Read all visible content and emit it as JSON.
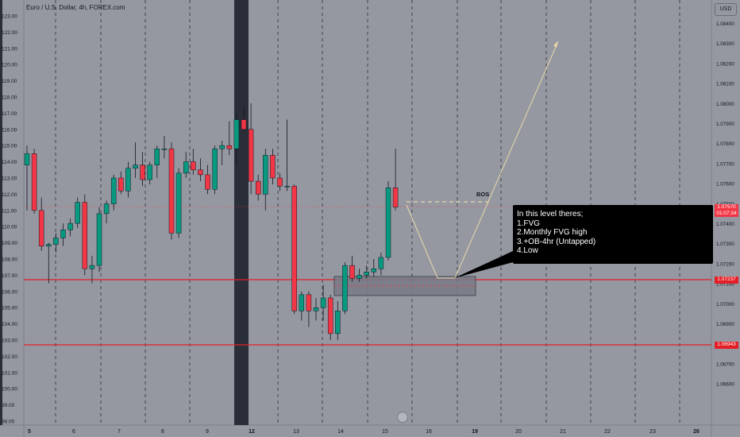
{
  "header": {
    "title": "Euro / U.S. Dollar, 4h, FOREX.com"
  },
  "currency_button": {
    "label": "USD"
  },
  "left_scale": {
    "labels": [
      "123.00",
      "122.00",
      "121.00",
      "120.00",
      "119.00",
      "118.00",
      "117.00",
      "116.00",
      "115.00",
      "114.00",
      "113.00",
      "112.00",
      "111.00",
      "110.00",
      "109.00",
      "108.00",
      "107.00",
      "106.00",
      "105.00",
      "104.00",
      "103.00",
      "102.00",
      "101.00",
      "100.00",
      "99.00",
      "98.00"
    ]
  },
  "right_scale": {
    "labels": [
      "1.08400",
      "1.08300",
      "1.08200",
      "1.08100",
      "1.08000",
      "1.07900",
      "1.07800",
      "1.07700",
      "1.07600",
      "1.07500",
      "1.07400",
      "1.07300",
      "1.07200",
      "1.07100",
      "1.07000",
      "1.06900",
      "1.06800",
      "1.06700",
      "1.06600"
    ]
  },
  "price_tags": {
    "current_price": "1.07570",
    "countdown": "01:07:34",
    "level_upper": "1.07237",
    "level_lower": "1.06943"
  },
  "time_axis": {
    "labels": [
      "5",
      "6",
      "7",
      "8",
      "9",
      "12",
      "13",
      "14",
      "15",
      "16",
      "19",
      "20",
      "21",
      "22",
      "23",
      "26"
    ]
  },
  "annotation": {
    "lines": [
      "In this level theres;",
      "1.FVG",
      "2.Monthly FVG high",
      "3.+OB-4hr (Untapped)",
      "4.Low"
    ]
  },
  "bos_label": "BOS",
  "colors": {
    "background": "#9598a1",
    "bull_candle": "#089981",
    "bear_candle": "#f23645",
    "level_line": "#e41e26",
    "projection": "#e8d9a8",
    "session_shade": "#2a2e39"
  },
  "candles": [
    {
      "o": 113.8,
      "h": 115.0,
      "l": 111.0,
      "c": 114.5
    },
    {
      "o": 114.5,
      "h": 114.8,
      "l": 110.8,
      "c": 111.0
    },
    {
      "o": 111.0,
      "h": 111.8,
      "l": 108.5,
      "c": 108.8
    },
    {
      "o": 108.8,
      "h": 109.0,
      "l": 106.5,
      "c": 108.9
    },
    {
      "o": 108.9,
      "h": 109.6,
      "l": 108.4,
      "c": 109.3
    },
    {
      "o": 109.3,
      "h": 110.2,
      "l": 108.8,
      "c": 109.8
    },
    {
      "o": 109.8,
      "h": 110.5,
      "l": 109.4,
      "c": 110.2
    },
    {
      "o": 110.2,
      "h": 111.8,
      "l": 109.9,
      "c": 111.5
    },
    {
      "o": 111.5,
      "h": 112.0,
      "l": 107.0,
      "c": 107.4
    },
    {
      "o": 107.4,
      "h": 108.2,
      "l": 106.5,
      "c": 107.6
    },
    {
      "o": 107.6,
      "h": 111.2,
      "l": 107.2,
      "c": 110.8
    },
    {
      "o": 110.8,
      "h": 111.6,
      "l": 110.2,
      "c": 111.4
    },
    {
      "o": 111.4,
      "h": 113.2,
      "l": 111.0,
      "c": 113.0
    },
    {
      "o": 113.0,
      "h": 113.4,
      "l": 112.0,
      "c": 112.2
    },
    {
      "o": 112.2,
      "h": 114.0,
      "l": 111.8,
      "c": 113.6
    },
    {
      "o": 113.6,
      "h": 115.2,
      "l": 113.0,
      "c": 113.8
    },
    {
      "o": 113.8,
      "h": 114.6,
      "l": 112.5,
      "c": 112.9
    },
    {
      "o": 112.9,
      "h": 114.0,
      "l": 112.6,
      "c": 113.8
    },
    {
      "o": 113.8,
      "h": 115.0,
      "l": 113.0,
      "c": 114.8
    },
    {
      "o": 114.8,
      "h": 115.6,
      "l": 114.2,
      "c": 114.8
    },
    {
      "o": 114.8,
      "h": 115.2,
      "l": 109.2,
      "c": 109.6
    },
    {
      "o": 109.6,
      "h": 113.6,
      "l": 109.3,
      "c": 113.3
    },
    {
      "o": 113.3,
      "h": 114.6,
      "l": 113.0,
      "c": 114.0
    },
    {
      "o": 114.0,
      "h": 114.8,
      "l": 113.2,
      "c": 113.5
    },
    {
      "o": 113.5,
      "h": 114.2,
      "l": 112.8,
      "c": 113.2
    },
    {
      "o": 113.2,
      "h": 113.8,
      "l": 112.0,
      "c": 112.3
    },
    {
      "o": 112.3,
      "h": 115.0,
      "l": 112.0,
      "c": 114.8
    },
    {
      "o": 114.8,
      "h": 115.3,
      "l": 113.8,
      "c": 115.0
    },
    {
      "o": 115.0,
      "h": 116.5,
      "l": 114.4,
      "c": 114.8
    },
    {
      "o": 114.8,
      "h": 117.0,
      "l": 113.8,
      "c": 116.6
    },
    {
      "o": 116.6,
      "h": 117.4,
      "l": 115.8,
      "c": 116.0
    },
    {
      "o": 116.0,
      "h": 117.6,
      "l": 112.0,
      "c": 112.8
    },
    {
      "o": 112.8,
      "h": 113.2,
      "l": 111.6,
      "c": 112.0
    },
    {
      "o": 112.0,
      "h": 114.8,
      "l": 111.0,
      "c": 114.4
    },
    {
      "o": 114.4,
      "h": 114.8,
      "l": 112.6,
      "c": 113.0
    },
    {
      "o": 113.0,
      "h": 113.3,
      "l": 112.2,
      "c": 112.5
    },
    {
      "o": 112.5,
      "h": 116.6,
      "l": 112.2,
      "c": 112.5
    },
    {
      "o": 112.5,
      "h": 112.6,
      "l": 104.6,
      "c": 104.8
    },
    {
      "o": 104.8,
      "h": 106.0,
      "l": 104.2,
      "c": 105.8
    },
    {
      "o": 105.8,
      "h": 106.0,
      "l": 103.8,
      "c": 104.8
    },
    {
      "o": 104.8,
      "h": 105.6,
      "l": 104.2,
      "c": 105.0
    },
    {
      "o": 105.0,
      "h": 106.4,
      "l": 104.2,
      "c": 105.6
    },
    {
      "o": 105.6,
      "h": 105.8,
      "l": 103.0,
      "c": 103.4
    },
    {
      "o": 103.4,
      "h": 105.4,
      "l": 103.0,
      "c": 104.8
    },
    {
      "o": 104.8,
      "h": 107.8,
      "l": 104.6,
      "c": 107.6
    },
    {
      "o": 107.6,
      "h": 108.2,
      "l": 106.6,
      "c": 106.8
    },
    {
      "o": 106.8,
      "h": 107.4,
      "l": 106.6,
      "c": 107.0
    },
    {
      "o": 107.0,
      "h": 107.6,
      "l": 106.8,
      "c": 107.2
    },
    {
      "o": 107.2,
      "h": 108.0,
      "l": 106.9,
      "c": 107.4
    },
    {
      "o": 107.4,
      "h": 108.4,
      "l": 107.0,
      "c": 108.1
    },
    {
      "o": 108.1,
      "h": 112.8,
      "l": 107.9,
      "c": 112.4
    },
    {
      "o": 112.4,
      "h": 114.8,
      "l": 111.0,
      "c": 111.2
    }
  ]
}
